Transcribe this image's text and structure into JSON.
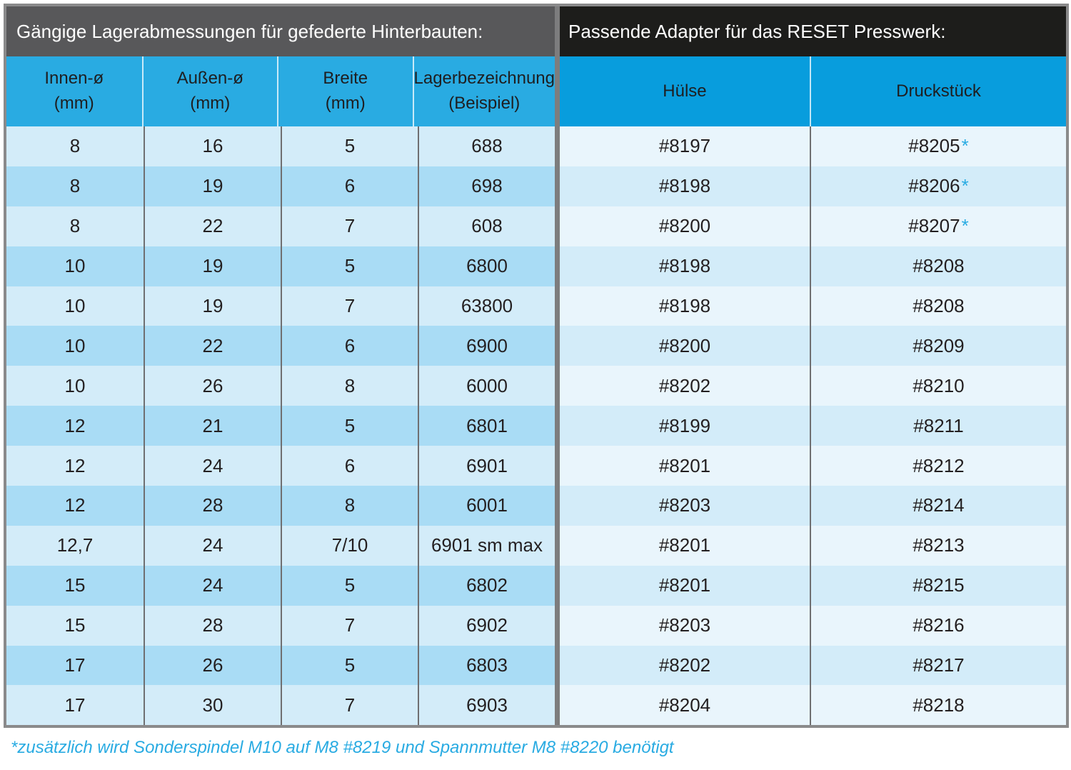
{
  "accent_color": "#29abe2",
  "colors": {
    "left_title_bg": "#58585a",
    "right_title_bg": "#1d1d1b",
    "left_header_blue": "#29abe2",
    "right_header_blue": "#089ddd",
    "left_row_light": "#d3ecf9",
    "left_row_dark": "#a9dcf5",
    "right_row_light": "#e9f5fc",
    "right_row_dark": "#d3ecf9",
    "border_gray": "#8a8a8b"
  },
  "left_panel": {
    "title": "Gängige Lagerabmessungen für gefederte Hinterbauten:",
    "columns": [
      {
        "label": "Innen-ø",
        "sub": "(mm)"
      },
      {
        "label": "Außen-ø",
        "sub": "(mm)"
      },
      {
        "label": "Breite",
        "sub": "(mm)"
      },
      {
        "label": "Lagerbezeichnung",
        "sub": "(Beispiel)"
      }
    ]
  },
  "right_panel": {
    "title": "Passende Adapter für das RESET Presswerk:",
    "columns": [
      {
        "label": "Hülse"
      },
      {
        "label": "Druckstück"
      }
    ]
  },
  "rows": [
    {
      "innen": "8",
      "aussen": "16",
      "breite": "5",
      "lager": "688",
      "huelse": "#8197",
      "druck": "#8205",
      "star": true
    },
    {
      "innen": "8",
      "aussen": "19",
      "breite": "6",
      "lager": "698",
      "huelse": "#8198",
      "druck": "#8206",
      "star": true
    },
    {
      "innen": "8",
      "aussen": "22",
      "breite": "7",
      "lager": "608",
      "huelse": "#8200",
      "druck": "#8207",
      "star": true
    },
    {
      "innen": "10",
      "aussen": "19",
      "breite": "5",
      "lager": "6800",
      "huelse": "#8198",
      "druck": "#8208",
      "star": false
    },
    {
      "innen": "10",
      "aussen": "19",
      "breite": "7",
      "lager": "63800",
      "huelse": "#8198",
      "druck": "#8208",
      "star": false
    },
    {
      "innen": "10",
      "aussen": "22",
      "breite": "6",
      "lager": "6900",
      "huelse": "#8200",
      "druck": "#8209",
      "star": false
    },
    {
      "innen": "10",
      "aussen": "26",
      "breite": "8",
      "lager": "6000",
      "huelse": "#8202",
      "druck": "#8210",
      "star": false
    },
    {
      "innen": "12",
      "aussen": "21",
      "breite": "5",
      "lager": "6801",
      "huelse": "#8199",
      "druck": "#8211",
      "star": false
    },
    {
      "innen": "12",
      "aussen": "24",
      "breite": "6",
      "lager": "6901",
      "huelse": "#8201",
      "druck": "#8212",
      "star": false
    },
    {
      "innen": "12",
      "aussen": "28",
      "breite": "8",
      "lager": "6001",
      "huelse": "#8203",
      "druck": "#8214",
      "star": false
    },
    {
      "innen": "12,7",
      "aussen": "24",
      "breite": "7/10",
      "lager": "6901 sm max",
      "huelse": "#8201",
      "druck": "#8213",
      "star": false
    },
    {
      "innen": "15",
      "aussen": "24",
      "breite": "5",
      "lager": "6802",
      "huelse": "#8201",
      "druck": "#8215",
      "star": false
    },
    {
      "innen": "15",
      "aussen": "28",
      "breite": "7",
      "lager": "6902",
      "huelse": "#8203",
      "druck": "#8216",
      "star": false
    },
    {
      "innen": "17",
      "aussen": "26",
      "breite": "5",
      "lager": "6803",
      "huelse": "#8202",
      "druck": "#8217",
      "star": false
    },
    {
      "innen": "17",
      "aussen": "30",
      "breite": "7",
      "lager": "6903",
      "huelse": "#8204",
      "druck": "#8218",
      "star": false
    }
  ],
  "footnote": "*zusätzlich wird Sonderspindel M10 auf M8 #8219 und Spannmutter M8 #8220 benötigt"
}
